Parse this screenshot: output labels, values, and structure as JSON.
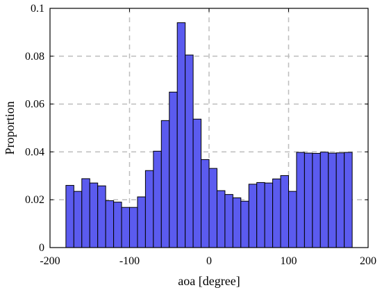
{
  "chart_data": {
    "type": "bar",
    "xlabel": "aoa [degree]",
    "ylabel": "Proportion",
    "xlim": [
      -200,
      200
    ],
    "ylim": [
      0,
      0.1
    ],
    "grid": true,
    "xticks": [
      "-200",
      "-100",
      "0",
      "100",
      "200"
    ],
    "yticks": [
      "0",
      "0.02",
      "0.04",
      "0.06",
      "0.08",
      "0.1"
    ],
    "bin_width": 10,
    "bins_x_start": [
      -180,
      -170,
      -160,
      -150,
      -140,
      -130,
      -120,
      -110,
      -100,
      -90,
      -80,
      -70,
      -60,
      -50,
      -40,
      -30,
      -20,
      -10,
      0,
      10,
      20,
      30,
      40,
      50,
      60,
      70,
      80,
      90,
      100,
      110,
      120,
      130,
      140,
      150,
      160,
      170
    ],
    "values": [
      0.026,
      0.0235,
      0.0288,
      0.027,
      0.0258,
      0.0196,
      0.019,
      0.0168,
      0.0168,
      0.0212,
      0.0322,
      0.0403,
      0.0531,
      0.065,
      0.094,
      0.0805,
      0.0537,
      0.0368,
      0.0331,
      0.0238,
      0.0222,
      0.0208,
      0.0194,
      0.0265,
      0.0272,
      0.027,
      0.0287,
      0.0301,
      0.0235,
      0.0398,
      0.0395,
      0.0394,
      0.0399,
      0.0395,
      0.0396,
      0.0398
    ],
    "bar_color": "#5b5bef",
    "bar_edge_color": "#000000",
    "grid_color": "#bdbdbd"
  }
}
